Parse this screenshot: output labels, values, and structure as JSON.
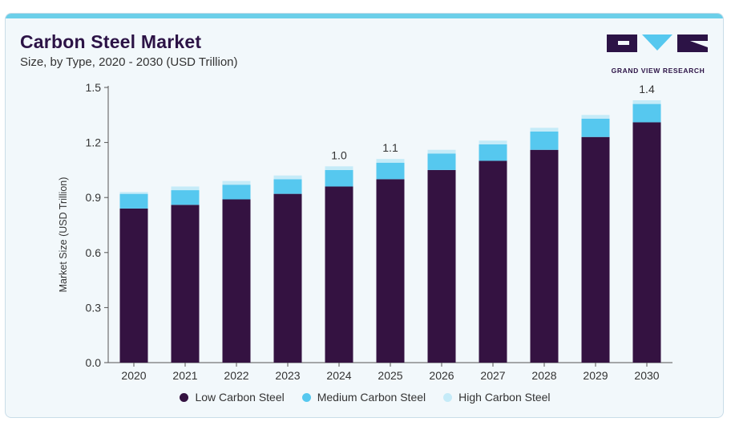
{
  "header": {
    "title": "Carbon Steel Market",
    "subtitle": "Size, by Type, 2020 - 2030 (USD Trillion)",
    "logo_text": "GRAND VIEW RESEARCH"
  },
  "colors": {
    "low": "#341241",
    "medium": "#56c8ef",
    "high": "#c5ebf8",
    "logo": "#2c1346",
    "logo_accent": "#56c8ef"
  },
  "chart_data": {
    "type": "bar",
    "stacked": true,
    "categories": [
      "2020",
      "2021",
      "2022",
      "2023",
      "2024",
      "2025",
      "2026",
      "2027",
      "2028",
      "2029",
      "2030"
    ],
    "series": [
      {
        "name": "Low Carbon Steel",
        "values": [
          0.84,
          0.86,
          0.89,
          0.92,
          0.96,
          1.0,
          1.05,
          1.1,
          1.16,
          1.23,
          1.31
        ]
      },
      {
        "name": "Medium Carbon Steel",
        "values": [
          0.08,
          0.08,
          0.08,
          0.08,
          0.09,
          0.09,
          0.09,
          0.09,
          0.1,
          0.1,
          0.1
        ]
      },
      {
        "name": "High Carbon Steel",
        "values": [
          0.01,
          0.02,
          0.02,
          0.02,
          0.02,
          0.02,
          0.02,
          0.02,
          0.02,
          0.02,
          0.02
        ]
      }
    ],
    "data_labels": [
      {
        "category": "2024",
        "text": "1.0"
      },
      {
        "category": "2025",
        "text": "1.1"
      },
      {
        "category": "2030",
        "text": "1.4"
      }
    ],
    "ylabel": "Market Size (USD Trillion)",
    "xlabel": "",
    "ylim": [
      0,
      1.5
    ],
    "yticks": [
      0.0,
      0.3,
      0.6,
      0.9,
      1.2,
      1.5
    ],
    "ytick_labels": [
      "0.0",
      "0.3",
      "0.6",
      "0.9",
      "1.2",
      "1.5"
    ],
    "grid": false,
    "legend_position": "bottom"
  }
}
